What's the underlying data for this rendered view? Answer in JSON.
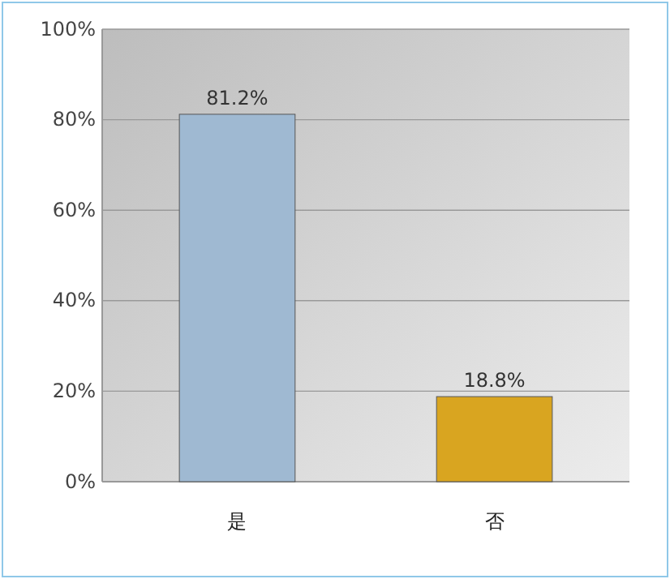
{
  "chart_data": {
    "type": "bar",
    "categories": [
      "是",
      "否"
    ],
    "values": [
      81.2,
      18.8
    ],
    "colors": [
      "#9fb9d2",
      "#d9a520"
    ],
    "value_labels": [
      "81.2%",
      "18.8%"
    ],
    "ylim": [
      0,
      100
    ],
    "yticks": [
      {
        "value": 0,
        "label": "0%"
      },
      {
        "value": 20,
        "label": "20%"
      },
      {
        "value": 40,
        "label": "40%"
      },
      {
        "value": 60,
        "label": "60%"
      },
      {
        "value": 80,
        "label": "80%"
      },
      {
        "value": 100,
        "label": "100%"
      }
    ],
    "grid": true
  }
}
